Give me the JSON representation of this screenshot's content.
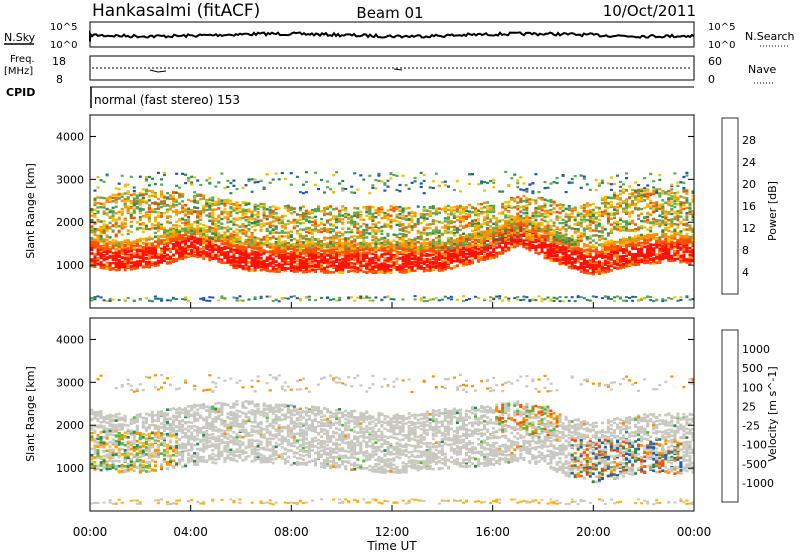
{
  "header": {
    "station": "Hankasalmi (fitACF)",
    "beam": "Beam 01",
    "date": "10/Oct/2011"
  },
  "noise_panel": {
    "left_label": "N.Sky",
    "right_label": "N.Search",
    "ticks": [
      "10^5",
      "10^0"
    ]
  },
  "freq_panel": {
    "left_label_1": "Freq.",
    "left_label_2": "[MHz]",
    "left_ticks": [
      "18",
      "8"
    ],
    "right_label": "Nave",
    "right_ticks": [
      "60",
      "0"
    ]
  },
  "cpid_panel": {
    "label": "CPID",
    "text": "normal (fast stereo) 153"
  },
  "colors": {
    "power_scale": [
      "#1010ff",
      "#2050c0",
      "#2a8a55",
      "#55aa55",
      "#f0c000",
      "#ff9000",
      "#ff5000",
      "#ff1000"
    ],
    "velocity_scale": [
      "#ff1000",
      "#ff5000",
      "#ff9000",
      "#ffb000",
      "#c8c8c0",
      "#c8c8c0",
      "#55bb33",
      "#2a8a55",
      "#2060b0",
      "#2040d0"
    ],
    "ground_scatter": "#c8c8c0"
  },
  "chart_data": [
    {
      "type": "heatmap",
      "panel": "power",
      "xlabel": "Time UT",
      "ylabel": "Slant Range [km]",
      "xlim": [
        0,
        24
      ],
      "ylim": [
        0,
        4500
      ],
      "x_ticks": [
        "00:00",
        "04:00",
        "08:00",
        "12:00",
        "16:00",
        "20:00",
        "00:00"
      ],
      "y_ticks": [
        "1000",
        "2000",
        "3000",
        "4000"
      ],
      "colorbar": {
        "label": "Power [dB]",
        "ticks": [
          "4",
          "8",
          "12",
          "16",
          "20",
          "24",
          "28"
        ],
        "range": [
          0,
          32
        ]
      },
      "series": [
        {
          "x": [
            0,
            1,
            2,
            3,
            4,
            5,
            6,
            8,
            10,
            12,
            14,
            16,
            17,
            18,
            19,
            19.5,
            20,
            21,
            22,
            23,
            24
          ],
          "values": [
            1250,
            1150,
            1200,
            1300,
            1500,
            1350,
            1150,
            1100,
            1100,
            1100,
            1150,
            1450,
            1750,
            1450,
            1200,
            1100,
            1050,
            1200,
            1300,
            1350,
            1300
          ]
        },
        {
          "x": [
            0,
            2,
            4,
            6,
            8,
            10,
            12,
            14,
            16,
            17,
            18,
            19,
            20,
            21,
            22,
            23,
            24
          ],
          "values": [
            2100,
            2300,
            2200,
            2000,
            1900,
            1900,
            1900,
            1900,
            2000,
            2150,
            2100,
            1900,
            2000,
            2300,
            2300,
            2300,
            2300
          ]
        }
      ]
    },
    {
      "type": "heatmap",
      "panel": "velocity",
      "xlabel": "Time UT",
      "ylabel": "Slant Range [km]",
      "xlim": [
        0,
        24
      ],
      "ylim": [
        0,
        4500
      ],
      "x_ticks": [
        "00:00",
        "04:00",
        "08:00",
        "12:00",
        "16:00",
        "20:00",
        "00:00"
      ],
      "y_ticks": [
        "1000",
        "2000",
        "3000",
        "4000"
      ],
      "colorbar": {
        "label": "Velocity [m s^-1]",
        "ticks": [
          "1000",
          "500",
          "100",
          "25",
          "-25",
          "-100",
          "-500",
          "-1000"
        ]
      },
      "series": [
        {
          "x": [
            0,
            1,
            2,
            3,
            4,
            6,
            8,
            10,
            12,
            14,
            16,
            17,
            18,
            19,
            20,
            21,
            22,
            23,
            24
          ],
          "values": [
            1600,
            1500,
            1500,
            1600,
            1700,
            1800,
            1700,
            1600,
            1500,
            1600,
            1700,
            1800,
            1700,
            1400,
            1300,
            1400,
            1500,
            1500,
            1500
          ]
        }
      ]
    }
  ]
}
